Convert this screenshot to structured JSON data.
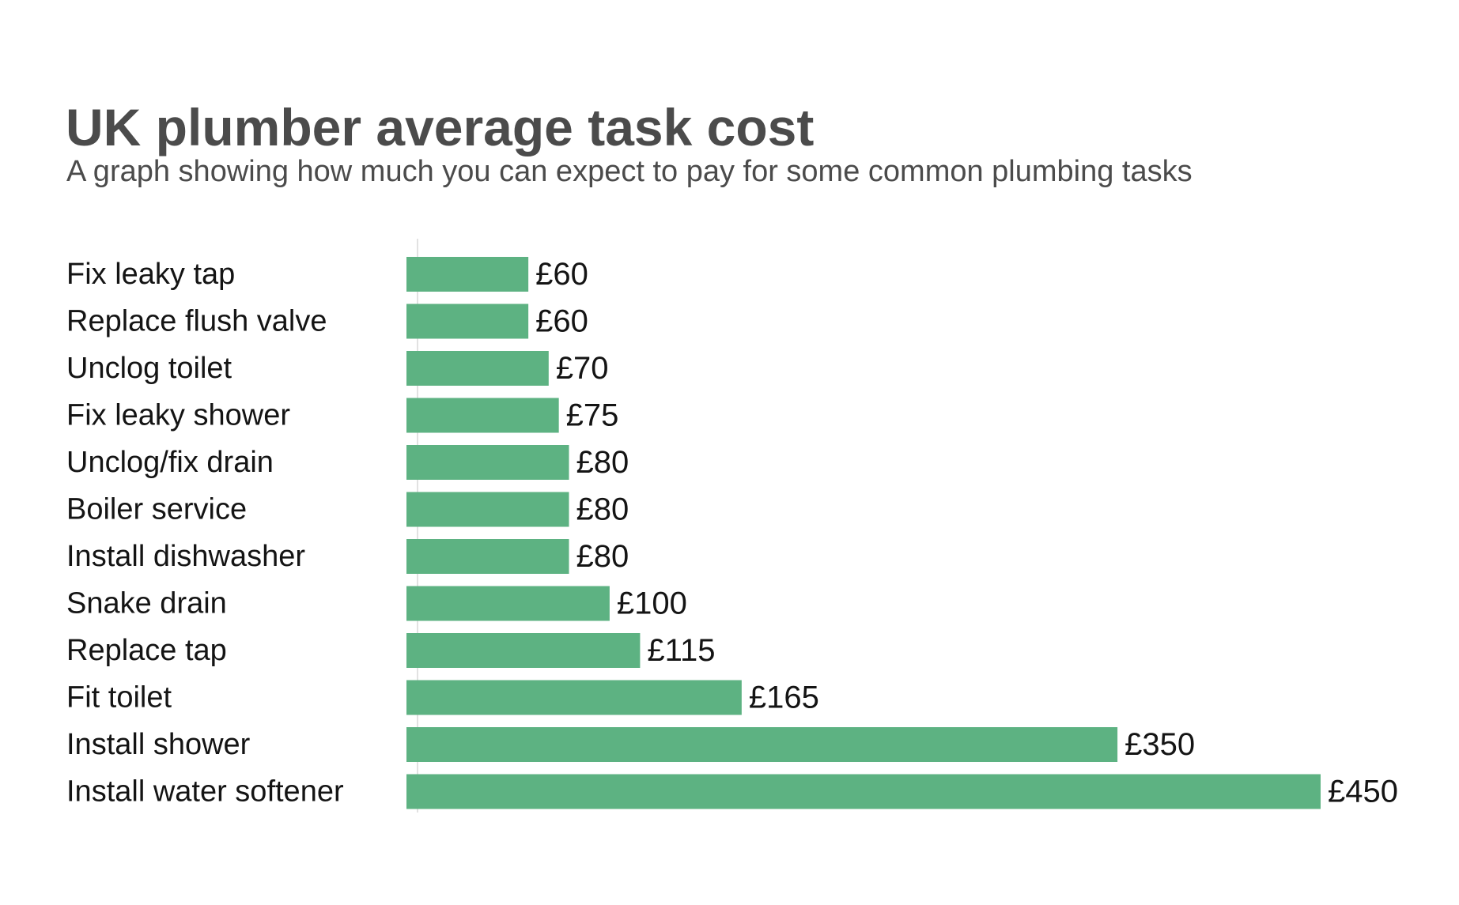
{
  "colors": {
    "bar": "#5db282",
    "text": "#141414",
    "heading": "#4b4b4b",
    "axis": "#d9d9d9"
  },
  "chart_data": {
    "type": "bar",
    "orientation": "horizontal",
    "title": "UK plumber average task cost",
    "subtitle": "A graph showing how much you can expect to pay for some common plumbing tasks",
    "categories": [
      "Fix leaky tap",
      "Replace flush valve",
      "Unclog toilet",
      "Fix leaky shower",
      "Unclog/fix drain",
      "Boiler service",
      "Install dishwasher",
      "Snake drain",
      "Replace tap",
      "Fit toilet",
      "Install shower",
      "Install water softener"
    ],
    "values": [
      60,
      60,
      70,
      75,
      80,
      80,
      80,
      100,
      115,
      165,
      350,
      450
    ],
    "value_labels": [
      "£60",
      "£60",
      "£70",
      "£75",
      "£80",
      "£80",
      "£80",
      "£100",
      "£115",
      "£165",
      "£350",
      "£450"
    ],
    "xlim": [
      0,
      450
    ],
    "grid": false,
    "legend": "none"
  }
}
